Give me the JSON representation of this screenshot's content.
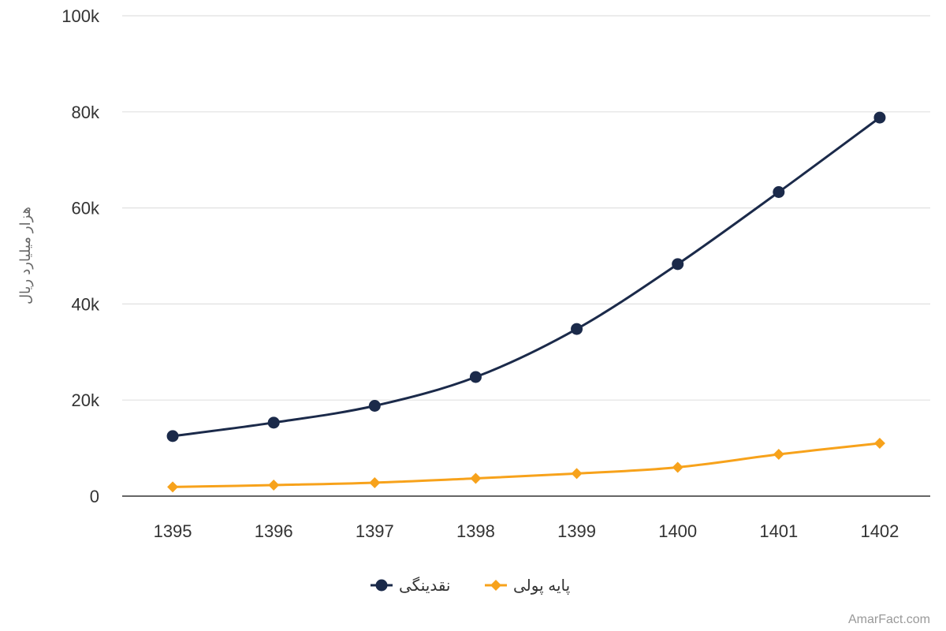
{
  "chart_data": {
    "type": "line",
    "title": "",
    "xlabel": "",
    "ylabel": "هزار میلیارد ریال",
    "categories": [
      "1395",
      "1396",
      "1397",
      "1398",
      "1399",
      "1400",
      "1401",
      "1402"
    ],
    "series": [
      {
        "name": "نقدینگی",
        "color": "#1b2a4a",
        "marker": "circle",
        "values": [
          12500,
          15300,
          18800,
          24800,
          34800,
          48300,
          63300,
          78800
        ]
      },
      {
        "name": "پایه پولی",
        "color": "#f7a21b",
        "marker": "diamond",
        "values": [
          1900,
          2300,
          2800,
          3700,
          4700,
          6000,
          8700,
          11000
        ]
      }
    ],
    "ylim": [
      0,
      100000
    ],
    "yticks": [
      "0",
      "20k",
      "40k",
      "60k",
      "80k",
      "100k"
    ],
    "grid": true,
    "legend": "bottom-center",
    "credit": "AmarFact.com"
  }
}
